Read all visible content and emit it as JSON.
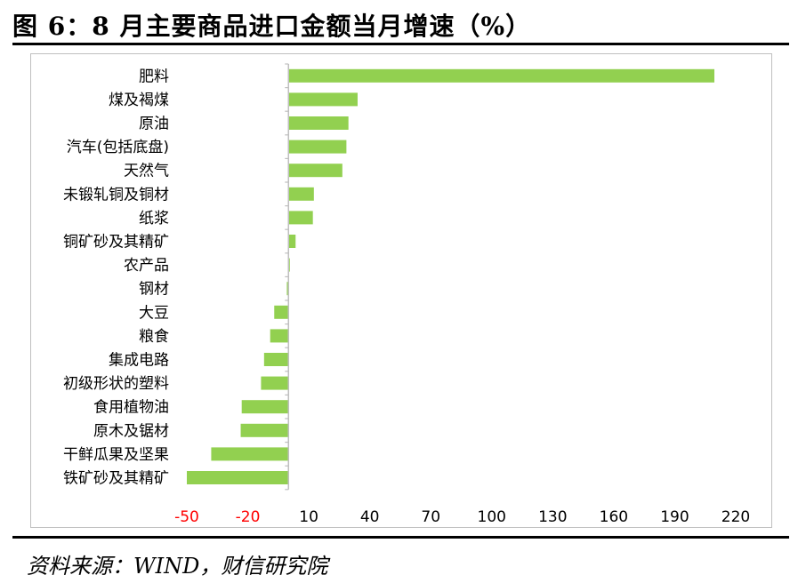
{
  "figure": {
    "title": "图 6：8 月主要商品进口金额当月增速（%）",
    "source": "资料来源：WIND，财信研究院"
  },
  "colors": {
    "bar": "#92d050",
    "negative_tick": "#ff0000",
    "axis": "#bfbfbf"
  },
  "chart_data": {
    "type": "bar",
    "orientation": "horizontal",
    "categories": [
      "肥料",
      "煤及褐煤",
      "原油",
      "汽车(包括底盘)",
      "天然气",
      "未锻轧铜及铜材",
      "纸浆",
      "铜矿砂及其精矿",
      "农产品",
      "钢材",
      "大豆",
      "粮食",
      "集成电路",
      "初级形状的塑料",
      "食用植物油",
      "原木及锯材",
      "干鲜瓜果及坚果",
      "铁矿砂及其精矿"
    ],
    "values": [
      209.5,
      34,
      29.5,
      28.5,
      26.5,
      12.5,
      12,
      3.5,
      0.5,
      -0.8,
      -7,
      -9,
      -12,
      -13.5,
      -23,
      -23.5,
      -38,
      -50
    ],
    "tick_labels": [
      "-50",
      "-20",
      "10",
      "40",
      "70",
      "100",
      "130",
      "160",
      "190",
      "220"
    ],
    "tick_values": [
      -50,
      -20,
      10,
      40,
      70,
      100,
      130,
      160,
      190,
      220
    ],
    "xlim": [
      -50,
      220
    ],
    "grid": false,
    "legend": false
  }
}
